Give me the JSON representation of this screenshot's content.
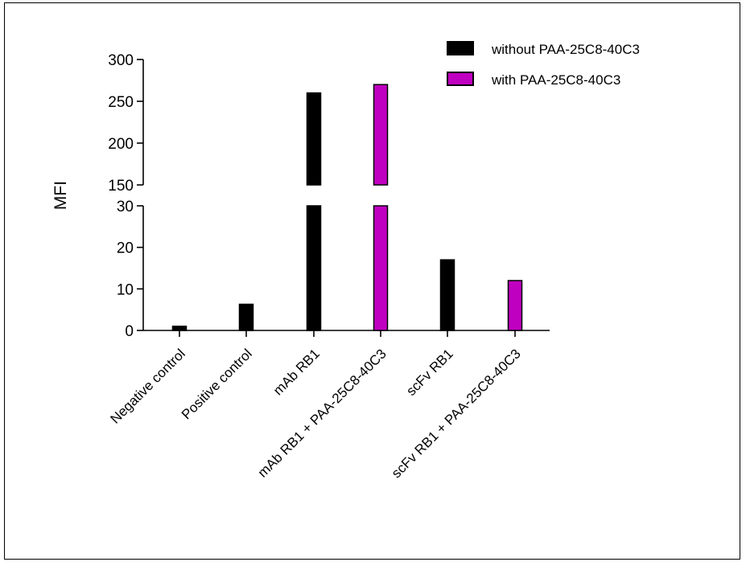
{
  "chart_data": {
    "type": "bar",
    "ylabel": "MFI",
    "y_axis_break": {
      "lower_range": [
        0,
        30
      ],
      "upper_range": [
        150,
        300
      ]
    },
    "lower_ticks": [
      "0",
      "10",
      "20",
      "30"
    ],
    "upper_ticks": [
      "150",
      "200",
      "250",
      "300"
    ],
    "categories": [
      "Negative control",
      "Positive control",
      "mAb RB1",
      "mAb RB1 + PAA-25C8-40C3",
      "scFv RB1",
      "scFv RB1 + PAA-25C8-40C3"
    ],
    "bar_groups": [
      "without",
      "without",
      "without",
      "with",
      "without",
      "with"
    ],
    "values": [
      1,
      6.3,
      260,
      270,
      17,
      12
    ],
    "series": [
      {
        "name": "without PAA-25C8-40C3",
        "color": "#000000"
      },
      {
        "name": "with PAA-25C8-40C3",
        "color": "#c000c0"
      }
    ],
    "legend_position": "top-right"
  }
}
